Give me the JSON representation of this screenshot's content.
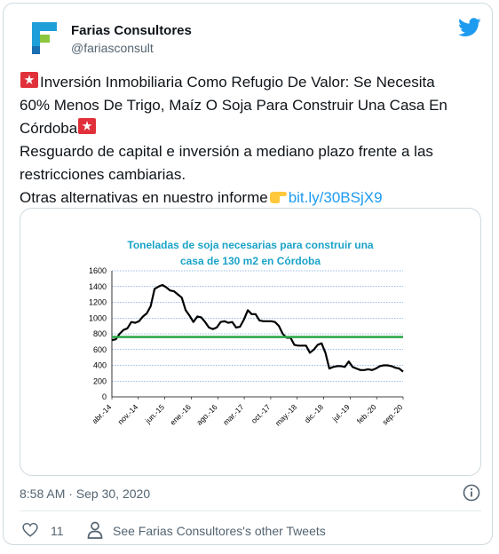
{
  "author": {
    "name": "Farias Consultores",
    "handle": "@fariasconsult"
  },
  "tweet": {
    "line1_text": "Inversión Inmobiliaria Como Refugio De Valor: Se Necesita",
    "line2_text": "60% Menos De Trigo, Maíz O Soja Para Construir Una Casa En",
    "line3_text": "Córdoba",
    "line4_text": "Resguardo de capital e inversión a mediano plazo frente a las",
    "line5_text": "restricciones cambiarias.",
    "line6_text": "Otras alternativas en nuestro informe",
    "link": "bit.ly/30BSjX9"
  },
  "chart_data": {
    "type": "line",
    "title_line1": "Toneladas de soja necesarias para construir una",
    "title_line2": "casa de 130 m2 en Córdoba",
    "xlabel": "",
    "ylabel": "",
    "ylim": [
      0,
      1600
    ],
    "yticks": [
      "0",
      "200",
      "400",
      "600",
      "800",
      "1000",
      "1200",
      "1400",
      "1600"
    ],
    "xticks": [
      "abr.-14",
      "nov.-14",
      "jun.-15",
      "ene.-16",
      "ago.-16",
      "mar.-17",
      "oct.-17",
      "may.-18",
      "dic.-18",
      "jul.-19",
      "feb.-20",
      "sep.-20"
    ],
    "grid": true,
    "series": [
      {
        "color": "#000000",
        "values": [
          720,
          730,
          800,
          850,
          870,
          950,
          940,
          960,
          1020,
          1060,
          1150,
          1370,
          1400,
          1420,
          1390,
          1350,
          1340,
          1300,
          1260,
          1100,
          1030,
          950,
          1020,
          1010,
          950,
          880,
          860,
          880,
          950,
          960,
          940,
          950,
          880,
          890,
          980,
          1100,
          1050,
          1050,
          970,
          960,
          960,
          960,
          950,
          900,
          800,
          750,
          750,
          660,
          650,
          650,
          650,
          560,
          600,
          660,
          680,
          560,
          360,
          380,
          390,
          390,
          380,
          450,
          380,
          360,
          340,
          340,
          350,
          340,
          360,
          390,
          400,
          400,
          390,
          370,
          360,
          320
        ]
      },
      {
        "color": "#2ea84a",
        "values": [
          760,
          760
        ]
      }
    ]
  },
  "meta": {
    "timestamp": "8:58 AM · Sep 30, 2020"
  },
  "actions": {
    "like_count": "11",
    "other_tweets": "See Farias Consultores's other Tweets"
  }
}
